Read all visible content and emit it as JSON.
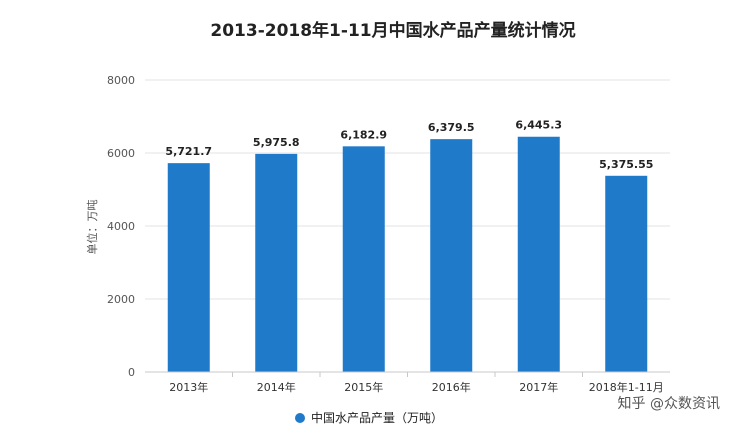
{
  "chart_data": {
    "type": "bar",
    "title": "2013-2018年1-11月中国水产品产量统计情况",
    "ylabel": "单位：万吨",
    "xlabel": "",
    "categories": [
      "2013年",
      "2014年",
      "2015年",
      "2016年",
      "2017年",
      "2018年1-11月"
    ],
    "series": [
      {
        "name": "中国水产品产量（万吨）",
        "values": [
          5721.7,
          5975.8,
          6182.9,
          6379.5,
          6445.3,
          5375.55
        ],
        "labels": [
          "5,721.7",
          "5,975.8",
          "6,182.9",
          "6,379.5",
          "6,445.3",
          "5,375.55"
        ]
      }
    ],
    "ylim": [
      0,
      8000
    ],
    "yticks": [
      "0",
      "2000",
      "4000",
      "6000",
      "8000"
    ],
    "grid": true,
    "legend_position": "bottom",
    "bar_color": "#1f7ac9"
  },
  "watermark": "知乎 @众数资讯"
}
